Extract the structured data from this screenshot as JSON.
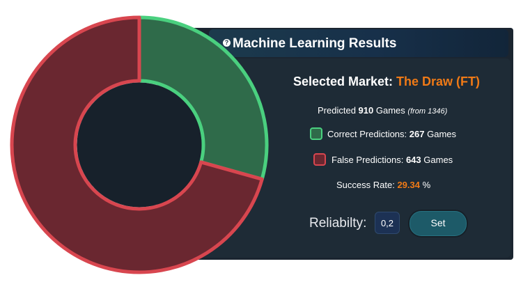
{
  "header": {
    "title": "Machine Learning Results",
    "help_icon": "help-icon"
  },
  "market": {
    "label": "Selected Market:",
    "value": "The Draw (FT)"
  },
  "predicted": {
    "prefix": "Predicted",
    "count": "910",
    "suffix": "Games",
    "from": "(from 1346)"
  },
  "correct": {
    "label": "Correct Predictions:",
    "count": "267",
    "unit": "Games"
  },
  "false_pred": {
    "label": "False Predictions:",
    "count": "643",
    "unit": "Games"
  },
  "success": {
    "label": "Success Rate:",
    "value": "29.34",
    "unit": "%"
  },
  "reliability": {
    "label": "Reliabilty:",
    "value": "0,2",
    "button": "Set"
  },
  "colors": {
    "correct_fill": "#2f6b4a",
    "correct_stroke": "#4ad07f",
    "false_fill": "#6a2730",
    "false_stroke": "#d8464f",
    "accent": "#f07a16",
    "panel": "#1b2530"
  },
  "chart_data": {
    "type": "pie",
    "categories": [
      "Correct Predictions",
      "False Predictions"
    ],
    "values": [
      267,
      643
    ]
  }
}
